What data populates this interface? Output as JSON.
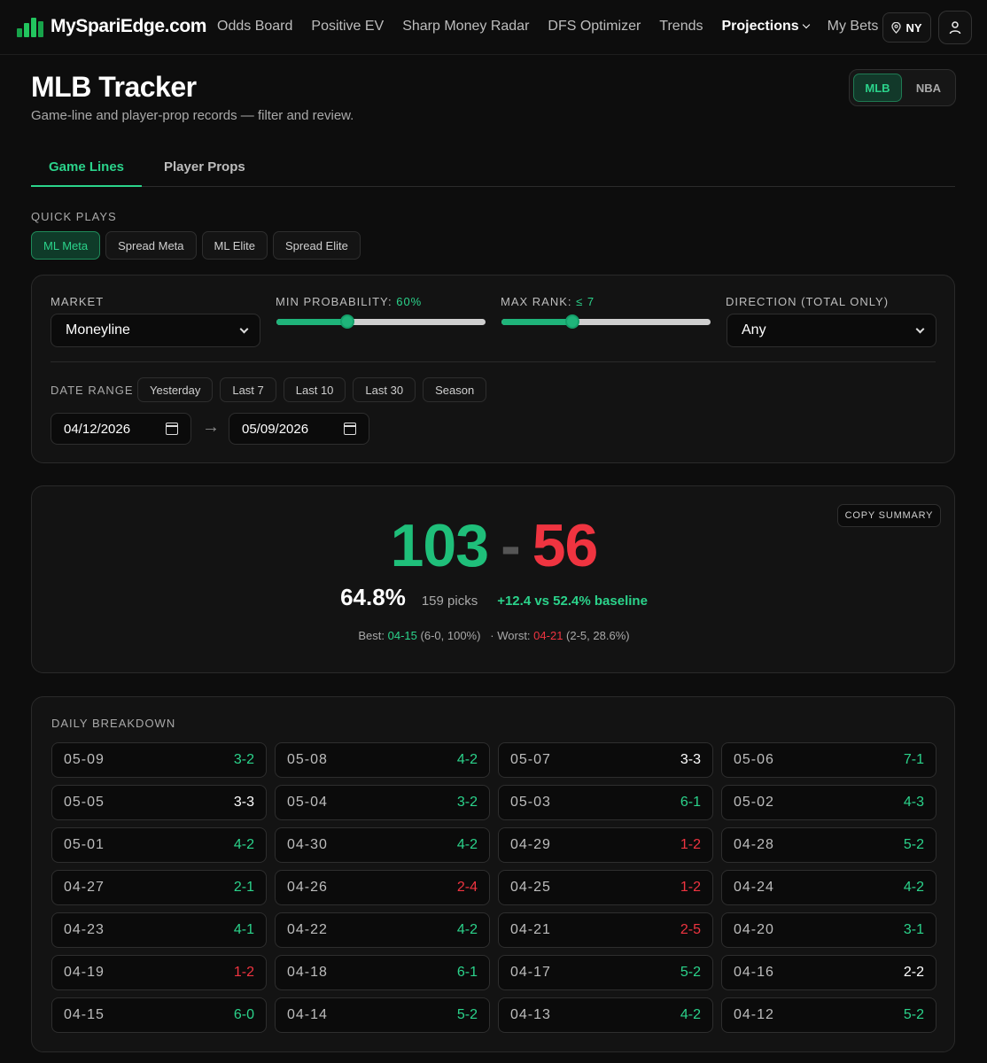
{
  "brand": {
    "name": "MySpariEdge.com",
    "icon": "bar-chart-logo-icon"
  },
  "nav": {
    "links": [
      "Odds Board",
      "Positive EV",
      "Sharp Money Radar",
      "DFS Optimizer",
      "Trends",
      "Projections",
      "My Bets"
    ],
    "active": "Projections",
    "location": "NY",
    "location_icon": "map-pin-icon",
    "user_icon": "user-icon"
  },
  "header": {
    "title": "MLB Tracker",
    "subtitle": "Game-line and player-prop records — filter and review.",
    "sports": [
      "MLB",
      "NBA"
    ],
    "active_sport": "MLB"
  },
  "tabs": [
    "Game Lines",
    "Player Props"
  ],
  "quick_plays": {
    "label": "QUICK PLAYS",
    "items": [
      "ML Meta",
      "Spread Meta",
      "ML Elite",
      "Spread Elite"
    ],
    "active": "ML Meta"
  },
  "filters": {
    "market": {
      "label": "MARKET",
      "value": "Moneyline"
    },
    "min_probability": {
      "label": "MIN PROBABILITY:",
      "display": "60%",
      "fraction": 0.34
    },
    "max_rank": {
      "label": "MAX RANK:",
      "display": "≤ 7",
      "fraction": 0.34
    },
    "direction": {
      "label": "DIRECTION (TOTAL ONLY)",
      "value": "Any"
    },
    "date_range": {
      "label": "DATE RANGE",
      "presets": [
        "Yesterday",
        "Last 7",
        "Last 10",
        "Last 30",
        "Season"
      ],
      "start": "04/12/2026",
      "end": "05/09/2026",
      "arrow": "→"
    }
  },
  "summary": {
    "copy_label": "COPY SUMMARY",
    "wins": "103",
    "losses": "56",
    "separator": "-",
    "win_pct": "64.8%",
    "picks": "159 picks",
    "edge": "+12.4 vs 52.4% baseline",
    "best_label": "Best:",
    "best_date": "04-15",
    "best_detail": "(6-0, 100%)",
    "worst_label": "· Worst:",
    "worst_date": "04-21",
    "worst_detail": "(2-5, 28.6%)"
  },
  "daily": {
    "label": "DAILY BREAKDOWN",
    "days": [
      {
        "date": "05-09",
        "record": "3-2",
        "result": "win"
      },
      {
        "date": "05-08",
        "record": "4-2",
        "result": "win"
      },
      {
        "date": "05-07",
        "record": "3-3",
        "result": "even"
      },
      {
        "date": "05-06",
        "record": "7-1",
        "result": "win"
      },
      {
        "date": "05-05",
        "record": "3-3",
        "result": "even"
      },
      {
        "date": "05-04",
        "record": "3-2",
        "result": "win"
      },
      {
        "date": "05-03",
        "record": "6-1",
        "result": "win"
      },
      {
        "date": "05-02",
        "record": "4-3",
        "result": "win"
      },
      {
        "date": "05-01",
        "record": "4-2",
        "result": "win"
      },
      {
        "date": "04-30",
        "record": "4-2",
        "result": "win"
      },
      {
        "date": "04-29",
        "record": "1-2",
        "result": "loss"
      },
      {
        "date": "04-28",
        "record": "5-2",
        "result": "win"
      },
      {
        "date": "04-27",
        "record": "2-1",
        "result": "win"
      },
      {
        "date": "04-26",
        "record": "2-4",
        "result": "loss"
      },
      {
        "date": "04-25",
        "record": "1-2",
        "result": "loss"
      },
      {
        "date": "04-24",
        "record": "4-2",
        "result": "win"
      },
      {
        "date": "04-23",
        "record": "4-1",
        "result": "win"
      },
      {
        "date": "04-22",
        "record": "4-2",
        "result": "win"
      },
      {
        "date": "04-21",
        "record": "2-5",
        "result": "loss"
      },
      {
        "date": "04-20",
        "record": "3-1",
        "result": "win"
      },
      {
        "date": "04-19",
        "record": "1-2",
        "result": "loss"
      },
      {
        "date": "04-18",
        "record": "6-1",
        "result": "win"
      },
      {
        "date": "04-17",
        "record": "5-2",
        "result": "win"
      },
      {
        "date": "04-16",
        "record": "2-2",
        "result": "even"
      },
      {
        "date": "04-15",
        "record": "6-0",
        "result": "win"
      },
      {
        "date": "04-14",
        "record": "5-2",
        "result": "win"
      },
      {
        "date": "04-13",
        "record": "4-2",
        "result": "win"
      },
      {
        "date": "04-12",
        "record": "5-2",
        "result": "win"
      }
    ]
  },
  "colors": {
    "accent": "#2bd38b",
    "win": "#1fbf7a",
    "loss": "#ef3440",
    "background": "#0d0d0d"
  }
}
